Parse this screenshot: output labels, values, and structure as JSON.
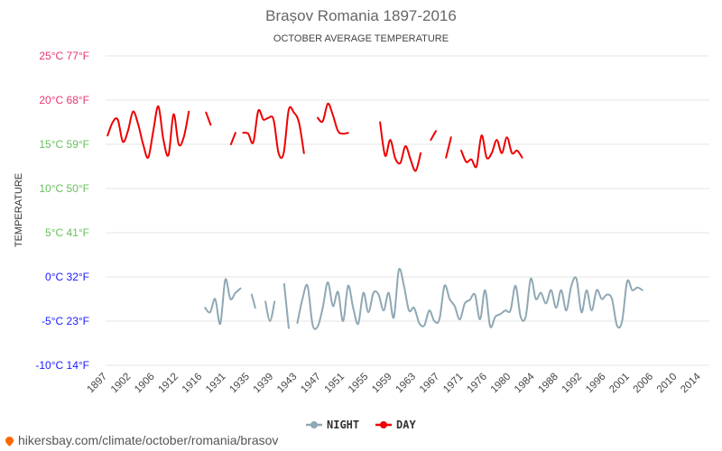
{
  "title": "Brașov Romania 1897-2016",
  "subtitle": "OCTOBER AVERAGE TEMPERATURE",
  "watermark": "hikersbay.com/climate/october/romania/brasov",
  "colors": {
    "day": "#ee0000",
    "night": "#8fa8b4",
    "grid": "#e6e6e6",
    "pin": "#ff6600",
    "y_tick_colors": [
      "#1a1aff",
      "#1a1aff",
      "#1a1aff",
      "#66c05a",
      "#66c05a",
      "#66c05a",
      "#e8356f",
      "#e8356f"
    ]
  },
  "chart_data": {
    "type": "line",
    "title": "Brașov Romania 1897-2016",
    "subtitle": "OCTOBER AVERAGE TEMPERATURE",
    "ylabel": "TEMPERATURE",
    "xlabel": "",
    "ylim": [
      -10,
      25
    ],
    "xlim": [
      1897,
      2016
    ],
    "y_ticks": [
      -10,
      -5,
      0,
      5,
      10,
      15,
      20,
      25
    ],
    "y_tick_labels": [
      "-10°C 14°F",
      "-5°C 23°F",
      "0°C 32°F",
      "5°C 41°F",
      "10°C 50°F",
      "15°C 59°F",
      "20°C 68°F",
      "25°C 77°F"
    ],
    "x_tick_labels": [
      "1897",
      "1902",
      "1906",
      "1912",
      "1916",
      "1931",
      "1935",
      "1939",
      "1943",
      "1947",
      "1951",
      "1955",
      "1959",
      "1963",
      "1967",
      "1971",
      "1976",
      "1980",
      "1984",
      "1988",
      "1992",
      "1996",
      "2001",
      "2006",
      "2010",
      "2014"
    ],
    "grid": true,
    "legend_position": "bottom-center",
    "series": [
      {
        "name": "NIGHT",
        "segments": [
          [
            [
              1916.6,
              -3.5
            ],
            [
              1917.6,
              -4.0
            ],
            [
              1918.6,
              -2.5
            ],
            [
              1919.6,
              -5.3
            ],
            [
              1920.6,
              -0.3
            ],
            [
              1921.6,
              -2.5
            ],
            [
              1922.6,
              -1.8
            ],
            [
              1923.6,
              -1.3
            ]
          ],
          [
            [
              1925.8,
              -2.0
            ],
            [
              1926.5,
              -3.5
            ]
          ],
          [
            [
              1928.5,
              -2.8
            ],
            [
              1929.4,
              -5.0
            ],
            [
              1930.3,
              -2.8
            ]
          ],
          [
            [
              1932.2,
              -0.8
            ],
            [
              1933.1,
              -5.8
            ]
          ],
          [
            [
              1934.8,
              -5.2
            ],
            [
              1935.8,
              -2.5
            ],
            [
              1936.8,
              -1.0
            ],
            [
              1937.8,
              -5.4
            ],
            [
              1938.8,
              -5.6
            ],
            [
              1939.8,
              -3.5
            ],
            [
              1940.8,
              -0.6
            ],
            [
              1941.8,
              -3.3
            ],
            [
              1942.8,
              -1.7
            ],
            [
              1943.8,
              -5.0
            ],
            [
              1944.8,
              -1.0
            ],
            [
              1945.8,
              -3.5
            ],
            [
              1946.8,
              -5.3
            ],
            [
              1947.8,
              -1.8
            ],
            [
              1948.8,
              -4.0
            ],
            [
              1949.8,
              -1.8
            ],
            [
              1950.8,
              -2.0
            ],
            [
              1951.8,
              -3.8
            ],
            [
              1952.8,
              -1.8
            ],
            [
              1953.8,
              -4.6
            ],
            [
              1954.8,
              0.8
            ],
            [
              1955.8,
              -1.0
            ],
            [
              1956.8,
              -3.8
            ],
            [
              1957.8,
              -3.5
            ],
            [
              1958.8,
              -5.2
            ],
            [
              1959.8,
              -5.5
            ],
            [
              1960.8,
              -3.8
            ],
            [
              1961.8,
              -5.0
            ],
            [
              1962.8,
              -4.8
            ],
            [
              1963.8,
              -1.0
            ],
            [
              1964.8,
              -2.5
            ],
            [
              1965.8,
              -3.3
            ],
            [
              1966.8,
              -4.8
            ],
            [
              1967.8,
              -3.0
            ],
            [
              1968.8,
              -2.6
            ],
            [
              1969.8,
              -2.0
            ],
            [
              1970.8,
              -4.8
            ],
            [
              1971.8,
              -1.5
            ],
            [
              1972.8,
              -5.6
            ],
            [
              1973.8,
              -4.5
            ],
            [
              1974.8,
              -4.2
            ],
            [
              1975.8,
              -3.8
            ],
            [
              1976.8,
              -3.8
            ],
            [
              1977.8,
              -1.0
            ],
            [
              1978.8,
              -4.5
            ],
            [
              1979.8,
              -4.5
            ],
            [
              1980.8,
              -0.2
            ],
            [
              1981.8,
              -2.5
            ],
            [
              1982.8,
              -1.8
            ],
            [
              1983.8,
              -3.0
            ],
            [
              1984.8,
              -1.5
            ],
            [
              1985.8,
              -3.5
            ],
            [
              1986.8,
              -1.5
            ],
            [
              1987.8,
              -3.8
            ],
            [
              1988.8,
              -1.0
            ],
            [
              1989.8,
              -0.2
            ],
            [
              1990.8,
              -4.0
            ],
            [
              1991.8,
              -1.5
            ],
            [
              1992.8,
              -3.8
            ],
            [
              1993.8,
              -1.5
            ],
            [
              1994.8,
              -2.5
            ],
            [
              1995.8,
              -2.0
            ],
            [
              1996.8,
              -2.5
            ],
            [
              1997.8,
              -5.5
            ],
            [
              1998.8,
              -5.0
            ],
            [
              1999.8,
              -0.5
            ],
            [
              2000.8,
              -1.5
            ],
            [
              2001.8,
              -1.2
            ],
            [
              2002.8,
              -1.5
            ]
          ]
        ]
      },
      {
        "name": "DAY",
        "segments": [
          [
            [
              1897.4,
              16.0
            ],
            [
              1898.4,
              17.5
            ],
            [
              1899.4,
              17.8
            ],
            [
              1900.4,
              15.3
            ],
            [
              1901.4,
              16.5
            ],
            [
              1902.4,
              18.7
            ],
            [
              1903.4,
              17.3
            ],
            [
              1904.4,
              15.0
            ],
            [
              1905.4,
              13.5
            ],
            [
              1906.4,
              16.5
            ],
            [
              1907.4,
              19.3
            ],
            [
              1908.4,
              15.5
            ],
            [
              1909.4,
              13.8
            ],
            [
              1910.4,
              18.4
            ],
            [
              1911.4,
              15.0
            ],
            [
              1912.4,
              15.8
            ],
            [
              1913.4,
              18.7
            ]
          ],
          [
            [
              1916.8,
              18.6
            ],
            [
              1917.7,
              17.2
            ]
          ],
          [
            [
              1921.7,
              15.0
            ],
            [
              1922.6,
              16.3
            ]
          ],
          [
            [
              1924.1,
              16.3
            ],
            [
              1925.1,
              16.2
            ],
            [
              1926.1,
              15.2
            ],
            [
              1927.1,
              18.8
            ],
            [
              1928.1,
              17.8
            ],
            [
              1929.1,
              18.0
            ],
            [
              1930.1,
              17.8
            ],
            [
              1931.1,
              14.0
            ],
            [
              1932.1,
              14.0
            ],
            [
              1933.1,
              18.9
            ],
            [
              1934.1,
              18.6
            ],
            [
              1935.1,
              17.5
            ],
            [
              1936.1,
              14.0
            ]
          ],
          [
            [
              1938.8,
              18.0
            ],
            [
              1939.8,
              17.6
            ],
            [
              1940.8,
              19.6
            ],
            [
              1941.8,
              18.3
            ],
            [
              1942.8,
              16.5
            ],
            [
              1943.8,
              16.2
            ],
            [
              1944.8,
              16.3
            ]
          ],
          [
            [
              1951.1,
              17.5
            ],
            [
              1952.1,
              13.7
            ],
            [
              1953.1,
              15.5
            ],
            [
              1954.1,
              13.4
            ],
            [
              1955.1,
              12.9
            ],
            [
              1956.1,
              14.8
            ],
            [
              1957.1,
              13.3
            ],
            [
              1958.1,
              12.0
            ],
            [
              1959.1,
              14.0
            ]
          ],
          [
            [
              1961.1,
              15.5
            ],
            [
              1962.1,
              16.5
            ]
          ],
          [
            [
              1964.1,
              13.5
            ],
            [
              1965.1,
              15.8
            ]
          ],
          [
            [
              1967.1,
              14.3
            ],
            [
              1968.1,
              13.0
            ],
            [
              1969.1,
              13.3
            ],
            [
              1970.1,
              12.5
            ],
            [
              1971.1,
              16.0
            ],
            [
              1972.1,
              13.5
            ],
            [
              1973.1,
              14.0
            ],
            [
              1974.1,
              15.5
            ],
            [
              1975.1,
              14.0
            ],
            [
              1976.1,
              15.8
            ],
            [
              1977.1,
              14.0
            ],
            [
              1978.1,
              14.3
            ],
            [
              1979.1,
              13.5
            ]
          ]
        ]
      }
    ]
  }
}
